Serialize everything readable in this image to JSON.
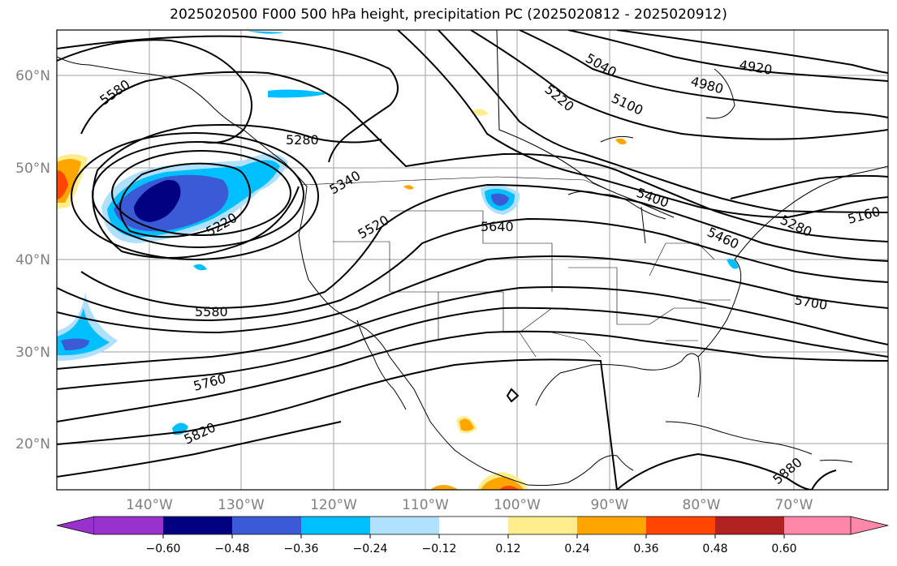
{
  "title": "2025020500 F000 500 hPa height, precipitation PC (2025020812 - 2025020912)",
  "lat_labels": [
    "60°N",
    "50°N",
    "40°N",
    "30°N",
    "20°N"
  ],
  "lon_labels": [
    "140°W",
    "130°W",
    "120°W",
    "110°W",
    "100°W",
    "90°W",
    "80°W",
    "70°W"
  ],
  "contour_labels": [
    "5580",
    "5340",
    "5280",
    "5220",
    "5520",
    "5640",
    "5040",
    "5220",
    "5100",
    "4920",
    "4980",
    "5400",
    "5280",
    "5460",
    "5160",
    "5580",
    "5700",
    "5760",
    "5820",
    "5880"
  ],
  "colorbar": {
    "tick_labels": [
      "−0.60",
      "−0.48",
      "−0.36",
      "−0.24",
      "−0.12",
      "0.12",
      "0.24",
      "0.36",
      "0.48",
      "0.60"
    ],
    "colors": [
      "#9932cc",
      "#000080",
      "#3b5bd6",
      "#00bfff",
      "#b0e0ff",
      "#ffffff",
      "#ffec8b",
      "#ffa500",
      "#ff4500",
      "#b22222",
      "#ff88aa"
    ]
  },
  "colors": {
    "contour": "#000000",
    "grid": "#b0b0b0",
    "coast": "#000000",
    "axis_text": "#808080"
  }
}
